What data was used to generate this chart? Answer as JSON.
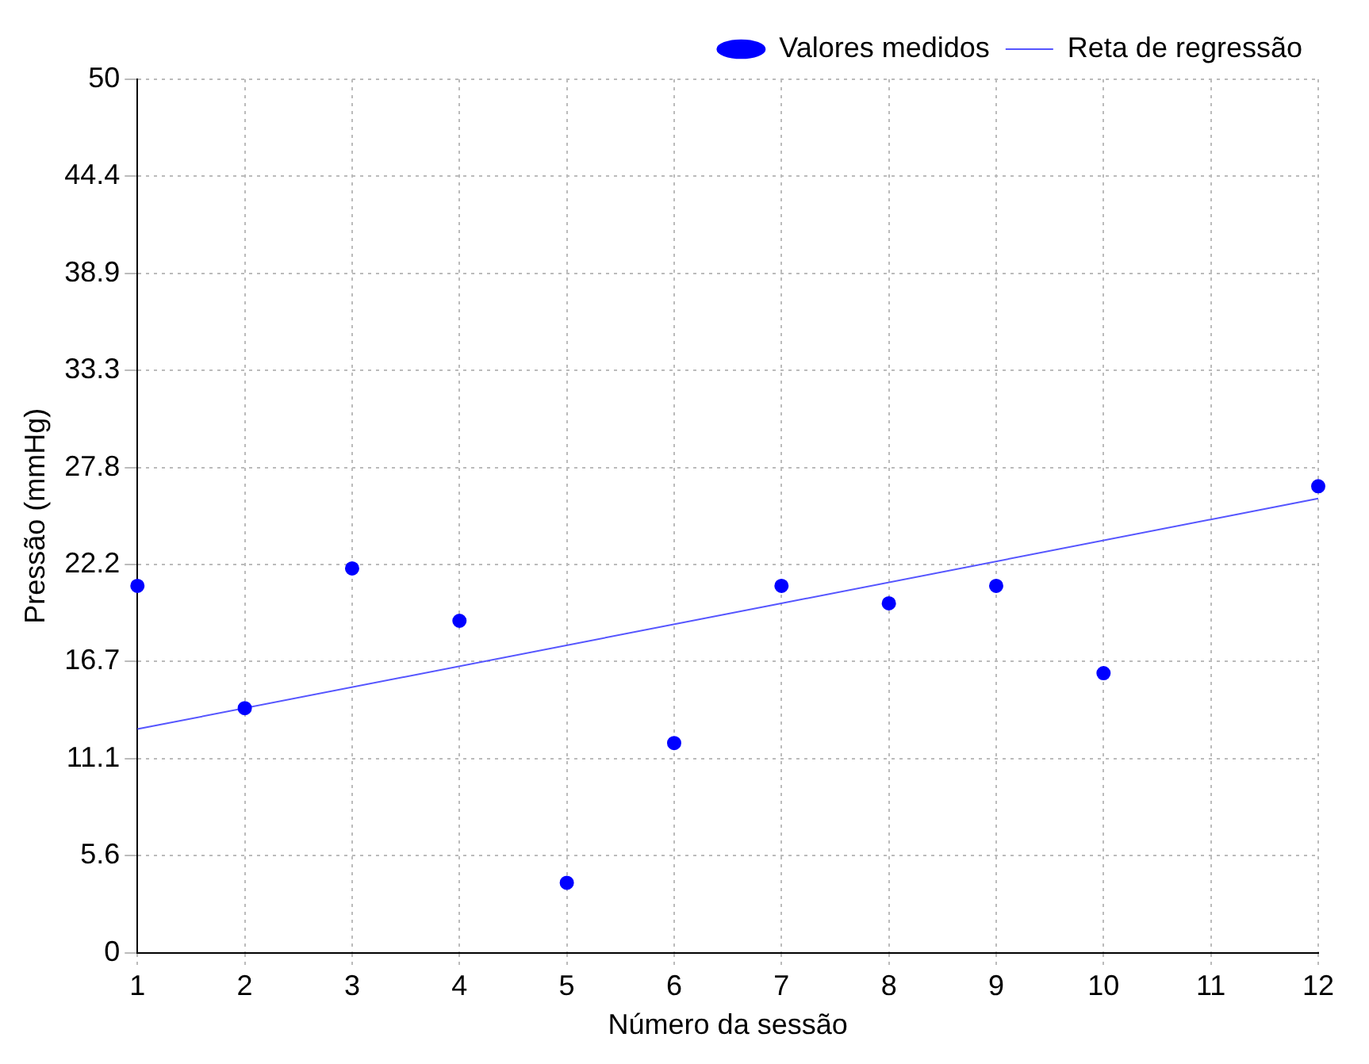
{
  "chart_data": {
    "type": "scatter",
    "xlabel": "Número da sessão",
    "ylabel": "Pressão (mmHg)",
    "xlim": [
      1,
      12
    ],
    "xticks": [
      1,
      2,
      3,
      4,
      5,
      6,
      7,
      8,
      9,
      10,
      11,
      12
    ],
    "ylim": [
      0,
      50
    ],
    "yticks": [
      0,
      {
        "value": 5.556,
        "label": "5.6"
      },
      {
        "value": 11.111,
        "label": "11.1"
      },
      {
        "value": 16.667,
        "label": "16.7"
      },
      {
        "value": 22.222,
        "label": "22.2"
      },
      {
        "value": 27.778,
        "label": "27.8"
      },
      {
        "value": 33.333,
        "label": "33.3"
      },
      {
        "value": 38.889,
        "label": "38.9"
      },
      {
        "value": 44.444,
        "label": "44.4"
      },
      50
    ],
    "grid": true,
    "legend": "top right",
    "series": [
      {
        "name": "Valores medidos",
        "type": "scatter",
        "color": "#0000ff",
        "marker": "circle",
        "x": [
          1,
          2,
          3,
          4,
          5,
          6,
          7,
          8,
          9,
          10,
          12
        ],
        "values": [
          21,
          14,
          22,
          19,
          4,
          12,
          21,
          20,
          21,
          16,
          26.7
        ]
      },
      {
        "name": "Reta de regressão",
        "type": "line",
        "color": "#5555ff",
        "line_style": "solid",
        "marker": "none",
        "x": [
          1,
          12
        ],
        "values": [
          12.8,
          26
        ]
      }
    ]
  }
}
